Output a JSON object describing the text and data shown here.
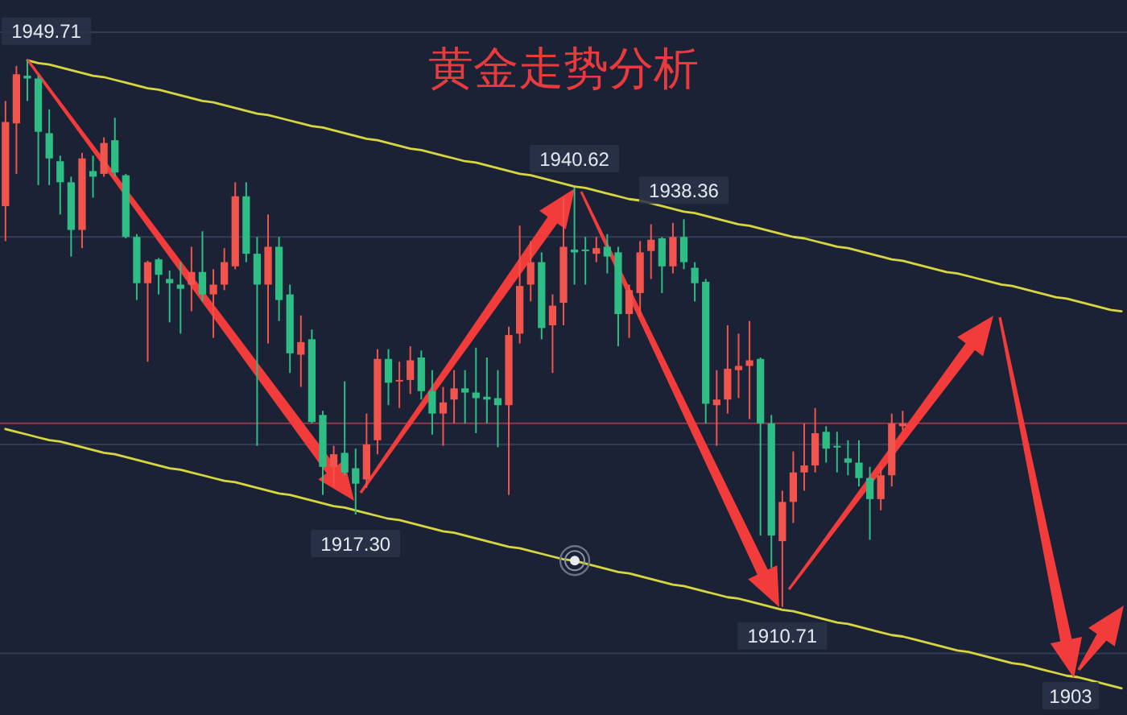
{
  "chart_data": {
    "type": "candlestick",
    "title": "黄金走势分析",
    "categories": [
      null,
      null,
      null,
      null,
      null,
      null,
      null,
      null,
      null,
      null,
      null,
      null,
      null,
      null,
      null,
      null,
      null,
      null,
      null,
      null,
      null,
      null,
      null,
      null,
      null,
      null,
      null,
      null,
      null,
      null,
      null,
      null,
      null,
      null,
      null,
      null,
      null,
      null,
      null,
      null,
      null,
      null,
      null,
      null,
      null,
      null,
      null,
      null,
      null,
      null,
      null,
      null,
      null,
      null,
      null,
      null,
      null,
      null,
      null,
      null,
      null,
      null,
      null,
      null,
      null,
      null,
      null,
      null,
      null,
      null,
      null,
      null,
      null,
      null,
      null,
      null,
      null,
      null,
      null,
      null,
      null,
      null,
      null,
      null,
      null,
      null,
      null,
      null,
      null,
      null,
      null,
      null,
      null,
      null,
      null,
      null,
      null,
      null,
      null,
      null,
      null,
      null,
      null
    ],
    "ohlc": [
      [
        1939.3,
        1946.8,
        1936.8,
        1945.3
      ],
      [
        1945.2,
        1949.3,
        1941.6,
        1948.7
      ],
      [
        1948.6,
        1949.71,
        1946.8,
        1948.4
      ],
      [
        1948.4,
        1948.6,
        1940.8,
        1944.6
      ],
      [
        1944.5,
        1946.2,
        1940.8,
        1942.7
      ],
      [
        1942.5,
        1942.9,
        1938.7,
        1941.0
      ],
      [
        1941.0,
        1941.4,
        1935.7,
        1937.6
      ],
      [
        1937.6,
        1943.1,
        1936.3,
        1942.7
      ],
      [
        1941.8,
        1942.9,
        1939.9,
        1941.4
      ],
      [
        1941.6,
        1944.2,
        1941.4,
        1943.8
      ],
      [
        1944.0,
        1945.6,
        1941.4,
        1941.7
      ],
      [
        1941.5,
        1941.6,
        1937.0,
        1937.1
      ],
      [
        1937.1,
        1937.3,
        1932.6,
        1933.8
      ],
      [
        1933.8,
        1935.4,
        1928.2,
        1935.3
      ],
      [
        1935.5,
        1935.6,
        1933.0,
        1934.4
      ],
      [
        1934.1,
        1934.7,
        1931.0,
        1933.8
      ],
      [
        1933.7,
        1935.3,
        1930.2,
        1933.4
      ],
      [
        1933.7,
        1936.4,
        1931.8,
        1934.6
      ],
      [
        1934.6,
        1937.5,
        1932.5,
        1933.0
      ],
      [
        1933.0,
        1934.8,
        1929.9,
        1933.7
      ],
      [
        1933.7,
        1936.3,
        1933.3,
        1935.3
      ],
      [
        1935.0,
        1941.0,
        1934.8,
        1940.0
      ],
      [
        1940.0,
        1941.0,
        1935.3,
        1935.9
      ],
      [
        1935.9,
        1937.1,
        1922.2,
        1933.7
      ],
      [
        1933.7,
        1938.7,
        1929.5,
        1936.4
      ],
      [
        1936.4,
        1937.1,
        1931.1,
        1932.6
      ],
      [
        1933.0,
        1933.7,
        1927.4,
        1928.8
      ],
      [
        1928.7,
        1931.5,
        1926.4,
        1929.6
      ],
      [
        1929.8,
        1930.5,
        1923.8,
        1923.9
      ],
      [
        1924.4,
        1924.7,
        1918.7,
        1920.7
      ],
      [
        1920.7,
        1922.2,
        1919.3,
        1921.6
      ],
      [
        1921.7,
        1926.8,
        1920.1,
        1920.3
      ],
      [
        1920.6,
        1922.0,
        1917.3,
        1919.5
      ],
      [
        1919.8,
        1924.5,
        1919.2,
        1922.3
      ],
      [
        1922.6,
        1929.1,
        1921.6,
        1928.4
      ],
      [
        1928.4,
        1929.1,
        1925.1,
        1926.7
      ],
      [
        1926.8,
        1928.2,
        1924.9,
        1926.9
      ],
      [
        1926.9,
        1929.3,
        1925.9,
        1928.3
      ],
      [
        1928.5,
        1929.0,
        1925.5,
        1926.1
      ],
      [
        1926.1,
        1927.6,
        1923.0,
        1924.5
      ],
      [
        1924.5,
        1926.4,
        1922.2,
        1925.3
      ],
      [
        1925.5,
        1927.6,
        1923.8,
        1926.3
      ],
      [
        1926.3,
        1927.6,
        1923.8,
        1926.0
      ],
      [
        1926.0,
        1929.2,
        1923.1,
        1925.6
      ],
      [
        1925.7,
        1928.5,
        1923.8,
        1925.5
      ],
      [
        1925.6,
        1927.6,
        1922.1,
        1925.1
      ],
      [
        1925.1,
        1930.7,
        1918.7,
        1930.1
      ],
      [
        1930.2,
        1937.9,
        1929.5,
        1933.6
      ],
      [
        1933.7,
        1936.8,
        1932.5,
        1935.3
      ],
      [
        1935.3,
        1936.0,
        1929.8,
        1930.6
      ],
      [
        1930.8,
        1933.0,
        1927.4,
        1932.2
      ],
      [
        1932.4,
        1939.9,
        1930.8,
        1936.4
      ],
      [
        1936.2,
        1940.62,
        1933.7,
        1936.0
      ],
      [
        1936.2,
        1937.1,
        1933.7,
        1936.1
      ],
      [
        1935.9,
        1937.1,
        1935.3,
        1936.3
      ],
      [
        1936.4,
        1937.3,
        1934.5,
        1935.7
      ],
      [
        1936.0,
        1936.4,
        1929.3,
        1931.6
      ],
      [
        1931.6,
        1933.7,
        1929.9,
        1933.3
      ],
      [
        1933.1,
        1936.8,
        1931.4,
        1936.0
      ],
      [
        1936.1,
        1938.0,
        1934.1,
        1936.9
      ],
      [
        1937.0,
        1937.1,
        1933.1,
        1935.0
      ],
      [
        1935.0,
        1938.1,
        1934.5,
        1937.1
      ],
      [
        1937.1,
        1938.36,
        1934.8,
        1935.3
      ],
      [
        1934.9,
        1935.3,
        1932.5,
        1933.8
      ],
      [
        1933.9,
        1934.1,
        1923.8,
        1925.2
      ],
      [
        1925.1,
        1927.6,
        1922.2,
        1925.5
      ],
      [
        1925.5,
        1930.8,
        1924.5,
        1927.7
      ],
      [
        1927.6,
        1930.2,
        1925.6,
        1927.9
      ],
      [
        1927.9,
        1931.1,
        1924.1,
        1928.3
      ],
      [
        1928.4,
        1928.5,
        1915.8,
        1923.8
      ],
      [
        1923.8,
        1924.4,
        1913.5,
        1915.8
      ],
      [
        1915.4,
        1919.0,
        1910.71,
        1918.2
      ],
      [
        1918.2,
        1921.8,
        1916.7,
        1920.3
      ],
      [
        1920.3,
        1923.8,
        1919.0,
        1920.8
      ],
      [
        1920.8,
        1924.9,
        1920.3,
        1923.1
      ],
      [
        1923.2,
        1923.6,
        1921.0,
        1922.0
      ],
      [
        1922.2,
        1923.2,
        1920.3,
        1922.1
      ],
      [
        1921.3,
        1922.6,
        1920.1,
        1921.0
      ],
      [
        1921.0,
        1922.6,
        1919.3,
        1919.9
      ],
      [
        1919.9,
        1920.7,
        1915.5,
        1918.4
      ],
      [
        1918.4,
        1920.7,
        1917.6,
        1920.1
      ],
      [
        1920.1,
        1924.5,
        1919.3,
        1923.8
      ],
      [
        1923.6,
        1924.7,
        1923.3,
        1923.8
      ],
      null,
      null,
      null,
      null,
      null,
      null,
      null,
      null,
      null,
      null,
      null,
      null,
      null,
      null,
      null,
      null,
      null,
      null,
      null,
      null
    ],
    "colors": [
      "#f0544c",
      "#f0544c",
      "#2dbd85",
      "#2dbd85",
      "#2dbd85",
      "#2dbd85",
      "#2dbd85",
      "#f0544c",
      "#2dbd85",
      "#f0544c",
      "#2dbd85",
      "#2dbd85",
      "#2dbd85",
      "#f0544c",
      "#2dbd85",
      "#2dbd85",
      "#2dbd85",
      "#f0544c",
      "#2dbd85",
      "#f0544c",
      "#f0544c",
      "#f0544c",
      "#2dbd85",
      "#2dbd85",
      "#f0544c",
      "#2dbd85",
      "#2dbd85",
      "#f0544c",
      "#2dbd85",
      "#2dbd85",
      "#f0544c",
      "#2dbd85",
      "#2dbd85",
      "#f0544c",
      "#f0544c",
      "#2dbd85",
      "#f0544c",
      "#f0544c",
      "#2dbd85",
      "#2dbd85",
      "#f0544c",
      "#f0544c",
      "#2dbd85",
      "#2dbd85",
      "#2dbd85",
      "#2dbd85",
      "#f0544c",
      "#f0544c",
      "#f0544c",
      "#2dbd85",
      "#f0544c",
      "#f0544c",
      "#2dbd85",
      "#2dbd85",
      "#f0544c",
      "#2dbd85",
      "#2dbd85",
      "#f0544c",
      "#f0544c",
      "#f0544c",
      "#2dbd85",
      "#f0544c",
      "#2dbd85",
      "#2dbd85",
      "#2dbd85",
      "#f0544c",
      "#f0544c",
      "#f0544c",
      "#f0544c",
      "#2dbd85",
      "#2dbd85",
      "#f0544c",
      "#f0544c",
      "#f0544c",
      "#f0544c",
      "#2dbd85",
      "#2dbd85",
      "#2dbd85",
      "#2dbd85",
      "#2dbd85",
      "#f0544c",
      "#f0544c",
      "#f0544c",
      null,
      null,
      null,
      null,
      null,
      null,
      null,
      null,
      null,
      null,
      null,
      null,
      null,
      null,
      null,
      null,
      null,
      null,
      null,
      null
    ],
    "value_labels": [
      null,
      null,
      "1949.71",
      null,
      null,
      null,
      null,
      null,
      null,
      null,
      null,
      null,
      null,
      null,
      null,
      null,
      null,
      null,
      null,
      null,
      null,
      null,
      null,
      null,
      null,
      null,
      null,
      null,
      null,
      null,
      null,
      null,
      "1917.30",
      null,
      null,
      null,
      null,
      null,
      null,
      null,
      null,
      null,
      null,
      null,
      null,
      null,
      null,
      null,
      null,
      null,
      null,
      null,
      "1940.62",
      null,
      null,
      null,
      null,
      null,
      null,
      null,
      null,
      null,
      "1938.36",
      null,
      null,
      null,
      null,
      null,
      null,
      null,
      null,
      "1910.71",
      null,
      null,
      null,
      null,
      null,
      null,
      null,
      null,
      null,
      null,
      null,
      null,
      null,
      null,
      null,
      null,
      null,
      null,
      null,
      null,
      null,
      null,
      null,
      null,
      null,
      null,
      null,
      null,
      null,
      null,
      null
    ],
    "series": [
      {
        "type": "line",
        "color": "#d8d640",
        "values": [
          null,
          null,
          1949.7,
          1949.5,
          1949.4,
          1949.2,
          1949.0,
          1948.8,
          1948.6,
          1948.5,
          1948.3,
          1948.1,
          1947.9,
          1947.7,
          1947.6,
          1947.4,
          1947.2,
          1947.0,
          1946.8,
          1946.7,
          1946.5,
          1946.3,
          1946.1,
          1945.9,
          1945.8,
          1945.6,
          1945.4,
          1945.2,
          1945.0,
          1944.9,
          1944.7,
          1944.5,
          1944.3,
          1944.1,
          1944.0,
          1943.8,
          1943.6,
          1943.4,
          1943.3,
          1943.1,
          1942.9,
          1942.7,
          1942.5,
          1942.4,
          1942.2,
          1942.0,
          1941.8,
          1941.6,
          1941.5,
          1941.3,
          1941.1,
          1940.9,
          1940.7,
          1940.6,
          1940.4,
          1940.2,
          1940.0,
          1939.8,
          1939.7,
          1939.5,
          1939.3,
          1939.1,
          1938.9,
          1938.8,
          1938.6,
          1938.4,
          1938.2,
          1938.0,
          1937.9,
          1937.7,
          1937.5,
          1937.3,
          1937.1,
          1937.0,
          1936.8,
          1936.6,
          1936.4,
          1936.3,
          1936.1,
          1935.9,
          1935.7,
          1935.5,
          1935.4,
          1935.2,
          1935.0,
          1934.8,
          1934.6,
          1934.5,
          1934.3,
          1934.1,
          1933.9,
          1933.7,
          1933.6,
          1933.4,
          1933.2,
          1933.0,
          1932.8,
          1932.7,
          1932.5,
          1932.3,
          1932.1,
          1931.9,
          1931.8
        ]
      },
      {
        "type": "line",
        "color": "#d8d640",
        "values": [
          1923.4,
          1923.2,
          1923.0,
          1922.8,
          1922.6,
          1922.5,
          1922.3,
          1922.1,
          1921.9,
          1921.7,
          1921.6,
          1921.4,
          1921.2,
          1921.0,
          1920.8,
          1920.6,
          1920.5,
          1920.3,
          1920.1,
          1919.9,
          1919.7,
          1919.6,
          1919.4,
          1919.2,
          1919.0,
          1918.8,
          1918.7,
          1918.5,
          1918.3,
          1918.1,
          1917.9,
          1917.8,
          1917.6,
          1917.4,
          1917.2,
          1917.0,
          1916.9,
          1916.7,
          1916.5,
          1916.3,
          1916.1,
          1916.0,
          1915.8,
          1915.6,
          1915.4,
          1915.2,
          1915.0,
          1914.9,
          1914.7,
          1914.5,
          1914.3,
          1914.1,
          1914.0,
          1913.8,
          1913.6,
          1913.4,
          1913.2,
          1913.1,
          1912.9,
          1912.7,
          1912.5,
          1912.3,
          1912.2,
          1912.0,
          1911.8,
          1911.6,
          1911.4,
          1911.3,
          1911.1,
          1910.9,
          1910.7,
          1910.5,
          1910.4,
          1910.2,
          1910.0,
          1909.8,
          1909.6,
          1909.5,
          1909.3,
          1909.1,
          1908.9,
          1908.7,
          1908.6,
          1908.4,
          1908.2,
          1908.0,
          1907.8,
          1907.6,
          1907.5,
          1907.3,
          1907.1,
          1906.9,
          1906.7,
          1906.6,
          1906.4,
          1906.2,
          1906.0,
          1905.8,
          1905.7,
          1905.5,
          1905.3,
          1905.1,
          1904.9
        ]
      }
    ],
    "ylim": [
      1903,
      1954
    ],
    "yticks": [
      {
        "value": 1951.7,
        "label": null
      },
      {
        "value": 1937.1,
        "label": null
      },
      {
        "value": 1922.3,
        "label": null
      },
      {
        "value": 1907.4,
        "label": null
      }
    ],
    "grid": "y",
    "ref_lines": [
      {
        "axis": "y",
        "value": 1923.8,
        "color": "#8b3a4c"
      }
    ],
    "annotations": [
      "1903"
    ]
  }
}
